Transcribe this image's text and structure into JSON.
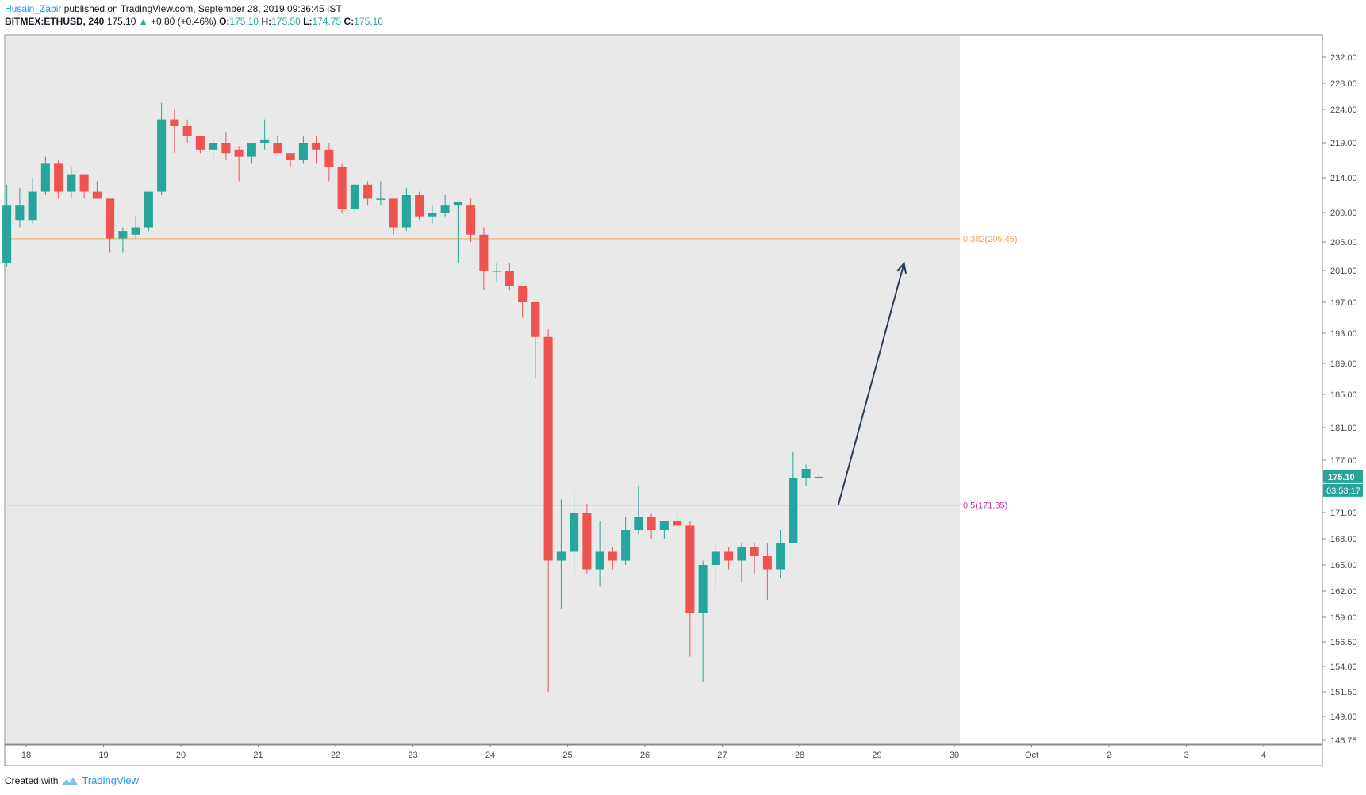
{
  "header": {
    "author": "Husain_Zabir",
    "published_text": " published on TradingView.com, September 28, 2019 09:36:45 IST",
    "symbol_interval": "BITMEX:ETHUSD, 240",
    "last": "175.10",
    "change": "+0.80 (+0.46%)",
    "o_label": "O:",
    "o_value": "175.10",
    "h_label": "H:",
    "h_value": "175.50",
    "l_label": "L:",
    "l_value": "174.75",
    "c_label": "C:",
    "c_value": "175.10"
  },
  "footer": {
    "created_with": "Created with",
    "brand": "TradingView"
  },
  "colors": {
    "up": "#26a69a",
    "down": "#ef5350",
    "plot_bg": "#e9e9e9",
    "fib_0382": "#f5a45a",
    "fib_05": "#c0399c",
    "arrow": "#2b3f5a",
    "price_tag": "#26a69a"
  },
  "chart_data": {
    "type": "candlestick",
    "symbol": "BITMEX:ETHUSD",
    "interval": "240",
    "ylim": [
      145.5,
      234.5
    ],
    "y_ticks": [
      232,
      228,
      224,
      219,
      214,
      209,
      205,
      201,
      197,
      193,
      189,
      185,
      181,
      177,
      171,
      168,
      165,
      162,
      159,
      156.5,
      154,
      151.5,
      149,
      146.75
    ],
    "y_tick_labels": [
      "232.00",
      "228.00",
      "224.00",
      "219.00",
      "214.00",
      "209.00",
      "205.00",
      "201.00",
      "197.00",
      "193.00",
      "189.00",
      "185.00",
      "181.00",
      "177.00",
      "171.00",
      "168.00",
      "165.00",
      "162.00",
      "159.00",
      "156.50",
      "154.00",
      "151.50",
      "149.00",
      "146.75"
    ],
    "x_tick_labels": [
      "18",
      "19",
      "20",
      "21",
      "22",
      "23",
      "24",
      "25",
      "26",
      "27",
      "28",
      "29",
      "30",
      "Oct",
      "2",
      "3",
      "4"
    ],
    "bars_per_day": 6,
    "first_bar_day_offset": -0.25,
    "candles": [
      {
        "o": 202,
        "h": 213,
        "l": 201.5,
        "c": 210
      },
      {
        "o": 208,
        "h": 212.5,
        "l": 207,
        "c": 210
      },
      {
        "o": 208,
        "h": 214,
        "l": 207.5,
        "c": 212
      },
      {
        "o": 212,
        "h": 217,
        "l": 211.5,
        "c": 216
      },
      {
        "o": 216,
        "h": 216.5,
        "l": 211,
        "c": 212
      },
      {
        "o": 212,
        "h": 215.5,
        "l": 211,
        "c": 214.5
      },
      {
        "o": 214.5,
        "h": 214.5,
        "l": 211,
        "c": 212
      },
      {
        "o": 212,
        "h": 213.5,
        "l": 211,
        "c": 211
      },
      {
        "o": 211,
        "h": 211,
        "l": 203.5,
        "c": 205.5
      },
      {
        "o": 205.5,
        "h": 207,
        "l": 203.5,
        "c": 206.5
      },
      {
        "o": 206,
        "h": 208.5,
        "l": 205.5,
        "c": 207
      },
      {
        "o": 207,
        "h": 212,
        "l": 206.5,
        "c": 212
      },
      {
        "o": 212,
        "h": 225,
        "l": 211.5,
        "c": 222.5
      },
      {
        "o": 222.5,
        "h": 224,
        "l": 217.5,
        "c": 221.5
      },
      {
        "o": 221.5,
        "h": 222.5,
        "l": 219,
        "c": 220
      },
      {
        "o": 220,
        "h": 220,
        "l": 217.5,
        "c": 218
      },
      {
        "o": 218,
        "h": 219.5,
        "l": 216,
        "c": 219
      },
      {
        "o": 219,
        "h": 220.5,
        "l": 216.5,
        "c": 217.5
      },
      {
        "o": 218,
        "h": 218.5,
        "l": 213.5,
        "c": 217
      },
      {
        "o": 217,
        "h": 219,
        "l": 216,
        "c": 219
      },
      {
        "o": 219,
        "h": 222.5,
        "l": 218,
        "c": 219.5
      },
      {
        "o": 219,
        "h": 220,
        "l": 217.5,
        "c": 217.5
      },
      {
        "o": 217.5,
        "h": 217.5,
        "l": 215.5,
        "c": 216.5
      },
      {
        "o": 216.5,
        "h": 220,
        "l": 216,
        "c": 219
      },
      {
        "o": 219,
        "h": 220,
        "l": 216,
        "c": 218
      },
      {
        "o": 218,
        "h": 219,
        "l": 213.5,
        "c": 215.5
      },
      {
        "o": 215.5,
        "h": 216,
        "l": 209,
        "c": 209.5
      },
      {
        "o": 209.5,
        "h": 213.5,
        "l": 209,
        "c": 213
      },
      {
        "o": 213,
        "h": 213.5,
        "l": 210,
        "c": 211
      },
      {
        "o": 211,
        "h": 213.5,
        "l": 210,
        "c": 211
      },
      {
        "o": 211,
        "h": 211,
        "l": 206,
        "c": 207
      },
      {
        "o": 207,
        "h": 212.5,
        "l": 206.5,
        "c": 211.5
      },
      {
        "o": 211.5,
        "h": 212,
        "l": 208,
        "c": 208.5
      },
      {
        "o": 208.5,
        "h": 210,
        "l": 207.5,
        "c": 209
      },
      {
        "o": 209,
        "h": 211.5,
        "l": 208.5,
        "c": 210
      },
      {
        "o": 210,
        "h": 210.5,
        "l": 202,
        "c": 210.5
      },
      {
        "o": 210,
        "h": 211,
        "l": 205,
        "c": 206
      },
      {
        "o": 206,
        "h": 207,
        "l": 198.5,
        "c": 201
      },
      {
        "o": 201,
        "h": 202,
        "l": 199.5,
        "c": 201
      },
      {
        "o": 201,
        "h": 202,
        "l": 198.5,
        "c": 199
      },
      {
        "o": 199,
        "h": 199,
        "l": 195,
        "c": 197
      },
      {
        "o": 197,
        "h": 197,
        "l": 187,
        "c": 192.5
      },
      {
        "o": 192.5,
        "h": 193.5,
        "l": 151.5,
        "c": 165.5
      },
      {
        "o": 165.5,
        "h": 172.5,
        "l": 160,
        "c": 166.5
      },
      {
        "o": 166.5,
        "h": 173.5,
        "l": 164,
        "c": 171
      },
      {
        "o": 171,
        "h": 172,
        "l": 164,
        "c": 164.5
      },
      {
        "o": 164.5,
        "h": 170,
        "l": 162.5,
        "c": 166.5
      },
      {
        "o": 166.5,
        "h": 167,
        "l": 164.5,
        "c": 165.5
      },
      {
        "o": 165.5,
        "h": 170.5,
        "l": 165,
        "c": 169
      },
      {
        "o": 169,
        "h": 174,
        "l": 168.5,
        "c": 170.5
      },
      {
        "o": 170.5,
        "h": 171,
        "l": 168,
        "c": 169
      },
      {
        "o": 169,
        "h": 170,
        "l": 168,
        "c": 170
      },
      {
        "o": 170,
        "h": 171,
        "l": 169,
        "c": 169.5
      },
      {
        "o": 169.5,
        "h": 170,
        "l": 155,
        "c": 159.5
      },
      {
        "o": 159.5,
        "h": 165.5,
        "l": 152.5,
        "c": 165
      },
      {
        "o": 165,
        "h": 167.5,
        "l": 162,
        "c": 166.5
      },
      {
        "o": 166.5,
        "h": 167,
        "l": 164.5,
        "c": 165.5
      },
      {
        "o": 165.5,
        "h": 167.5,
        "l": 163,
        "c": 167
      },
      {
        "o": 167,
        "h": 167.5,
        "l": 164,
        "c": 166
      },
      {
        "o": 166,
        "h": 167.5,
        "l": 161,
        "c": 164.5
      },
      {
        "o": 164.5,
        "h": 169,
        "l": 163.5,
        "c": 167.5
      },
      {
        "o": 167.5,
        "h": 178,
        "l": 167.5,
        "c": 175
      },
      {
        "o": 175,
        "h": 176.5,
        "l": 174,
        "c": 176
      },
      {
        "o": 175.1,
        "h": 175.5,
        "l": 174.75,
        "c": 175.1
      }
    ],
    "horizontal_levels": [
      {
        "label": "0.382(205.45)",
        "value": 205.45
      },
      {
        "label": "0.5(171.85)",
        "value": 171.85
      }
    ],
    "projection_arrow": {
      "from": {
        "day_offset": 10.5,
        "price": 171.85
      },
      "to": {
        "day_offset": 11.35,
        "price": 202
      }
    },
    "last_price": {
      "label": "175.10",
      "value": 175.1
    },
    "countdown": "03:53:17"
  }
}
